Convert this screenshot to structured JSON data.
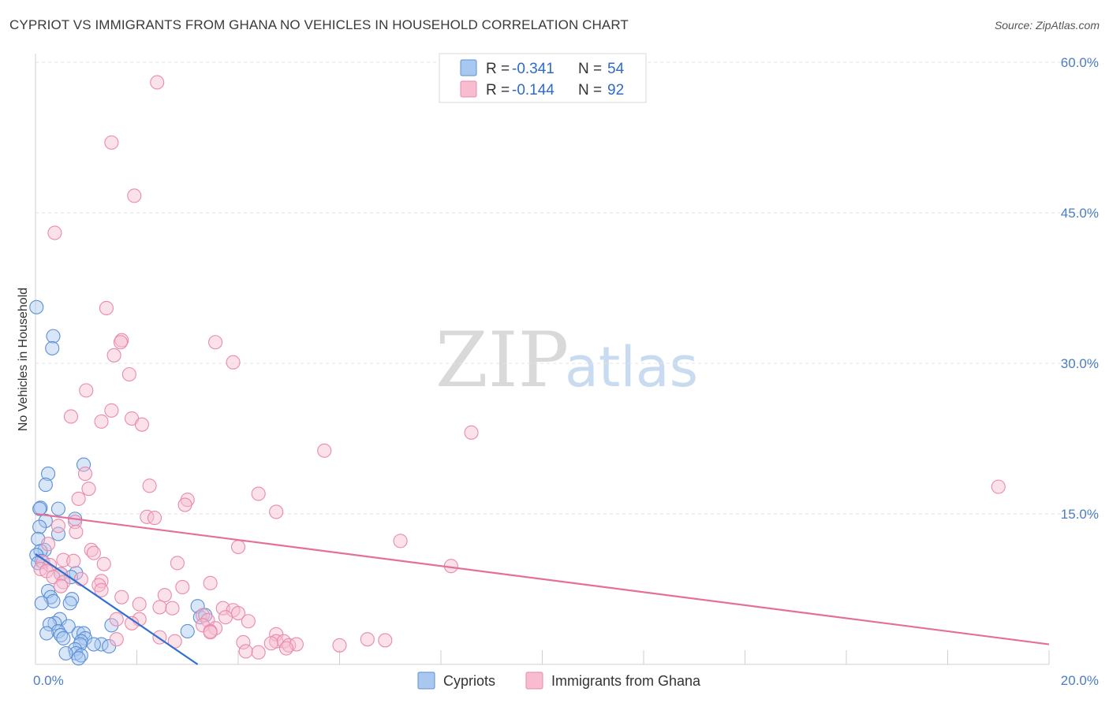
{
  "header": {
    "title": "CYPRIOT VS IMMIGRANTS FROM GHANA NO VEHICLES IN HOUSEHOLD CORRELATION CHART",
    "source": "Source: ZipAtlas.com"
  },
  "watermark": {
    "zip": "ZIP",
    "atlas": "atlas"
  },
  "colors": {
    "blue_fill": "#a9c8f0",
    "blue_stroke": "#5b8fd6",
    "blue_line": "#2f6fd0",
    "pink_fill": "#f7bcd0",
    "pink_stroke": "#e98aab",
    "pink_line": "#e4709a",
    "axis_text": "#4a7cc8",
    "grid": "#e3e3e3"
  },
  "legend": {
    "rows": [
      {
        "r_label": "R =",
        "r_value": "-0.341",
        "n_label": "N =",
        "n_value": "54",
        "swatch": "blue"
      },
      {
        "r_label": "R =",
        "r_value": "-0.144",
        "n_label": "N =",
        "n_value": "92",
        "swatch": "pink"
      }
    ]
  },
  "chart_data": {
    "type": "scatter",
    "title": "CYPRIOT VS IMMIGRANTS FROM GHANA NO VEHICLES IN HOUSEHOLD CORRELATION CHART",
    "xlabel": "",
    "ylabel": "No Vehicles in Household",
    "xlim": [
      0,
      20
    ],
    "ylim": [
      0,
      60
    ],
    "x_tick_labels": [
      "0.0%",
      "20.0%"
    ],
    "y_ticks": [
      15,
      30,
      45,
      60
    ],
    "y_tick_labels": [
      "15.0%",
      "30.0%",
      "45.0%",
      "60.0%"
    ],
    "grid": true,
    "legend_position": "top-center",
    "bottom_legend": [
      "Cypriots",
      "Immigrants from Ghana"
    ],
    "series": [
      {
        "name": "Cypriots",
        "color": "blue",
        "r": -0.341,
        "n": 54,
        "trend": {
          "x0": 0.0,
          "y0": 11.0,
          "x1": 3.2,
          "y1": 0.0
        },
        "points": [
          [
            0.02,
            35.6
          ],
          [
            0.35,
            32.7
          ],
          [
            0.33,
            31.5
          ],
          [
            0.95,
            19.9
          ],
          [
            0.25,
            19.0
          ],
          [
            0.2,
            17.9
          ],
          [
            0.1,
            15.6
          ],
          [
            0.45,
            15.5
          ],
          [
            0.08,
            15.5
          ],
          [
            0.78,
            14.5
          ],
          [
            0.2,
            14.3
          ],
          [
            0.08,
            13.7
          ],
          [
            0.45,
            13.0
          ],
          [
            0.05,
            12.5
          ],
          [
            0.18,
            11.4
          ],
          [
            0.1,
            11.3
          ],
          [
            0.02,
            10.9
          ],
          [
            0.12,
            10.3
          ],
          [
            0.05,
            10.1
          ],
          [
            0.8,
            9.1
          ],
          [
            0.5,
            9.0
          ],
          [
            0.7,
            8.7
          ],
          [
            0.25,
            7.3
          ],
          [
            0.3,
            6.7
          ],
          [
            0.35,
            6.3
          ],
          [
            0.72,
            6.5
          ],
          [
            0.68,
            6.1
          ],
          [
            0.12,
            6.1
          ],
          [
            3.2,
            5.8
          ],
          [
            3.25,
            4.7
          ],
          [
            3.35,
            4.9
          ],
          [
            0.48,
            4.5
          ],
          [
            0.38,
            4.1
          ],
          [
            0.28,
            4.0
          ],
          [
            0.65,
            3.8
          ],
          [
            1.5,
            3.9
          ],
          [
            0.45,
            3.3
          ],
          [
            0.22,
            3.1
          ],
          [
            0.5,
            2.9
          ],
          [
            0.85,
            3.1
          ],
          [
            0.95,
            3.1
          ],
          [
            0.98,
            2.6
          ],
          [
            3.0,
            3.3
          ],
          [
            0.9,
            2.3
          ],
          [
            0.55,
            2.6
          ],
          [
            0.88,
            2.0
          ],
          [
            1.3,
            2.0
          ],
          [
            1.15,
            2.0
          ],
          [
            1.45,
            1.8
          ],
          [
            0.78,
            1.5
          ],
          [
            0.8,
            1.1
          ],
          [
            0.6,
            1.1
          ],
          [
            0.9,
            0.9
          ],
          [
            0.85,
            0.6
          ]
        ]
      },
      {
        "name": "Immigrants from Ghana",
        "color": "pink",
        "r": -0.144,
        "n": 92,
        "trend": {
          "x0": 0.0,
          "y0": 15.0,
          "x1": 20.0,
          "y1": 2.0
        },
        "points": [
          [
            2.4,
            58.0
          ],
          [
            1.5,
            52.0
          ],
          [
            1.95,
            46.7
          ],
          [
            0.38,
            43.0
          ],
          [
            1.4,
            35.5
          ],
          [
            1.7,
            32.3
          ],
          [
            1.68,
            32.1
          ],
          [
            3.55,
            32.1
          ],
          [
            1.55,
            30.8
          ],
          [
            3.9,
            30.1
          ],
          [
            1.85,
            28.9
          ],
          [
            1.0,
            27.3
          ],
          [
            1.5,
            25.3
          ],
          [
            0.7,
            24.7
          ],
          [
            1.9,
            24.5
          ],
          [
            1.3,
            24.2
          ],
          [
            2.1,
            23.9
          ],
          [
            8.6,
            23.1
          ],
          [
            5.7,
            21.3
          ],
          [
            0.98,
            19.0
          ],
          [
            2.25,
            17.8
          ],
          [
            1.05,
            17.5
          ],
          [
            4.4,
            17.0
          ],
          [
            19.0,
            17.7
          ],
          [
            0.85,
            16.5
          ],
          [
            3.0,
            16.4
          ],
          [
            2.95,
            15.9
          ],
          [
            4.75,
            15.2
          ],
          [
            2.2,
            14.7
          ],
          [
            2.35,
            14.6
          ],
          [
            0.78,
            14.2
          ],
          [
            0.45,
            13.8
          ],
          [
            0.8,
            13.2
          ],
          [
            7.2,
            12.3
          ],
          [
            0.25,
            12.0
          ],
          [
            4.0,
            11.7
          ],
          [
            1.1,
            11.4
          ],
          [
            1.15,
            11.1
          ],
          [
            0.55,
            10.4
          ],
          [
            0.75,
            10.3
          ],
          [
            2.8,
            10.1
          ],
          [
            1.35,
            10.0
          ],
          [
            0.15,
            10.2
          ],
          [
            0.28,
            9.9
          ],
          [
            0.1,
            9.5
          ],
          [
            0.22,
            9.3
          ],
          [
            8.2,
            9.8
          ],
          [
            0.5,
            9.0
          ],
          [
            0.35,
            8.7
          ],
          [
            0.55,
            8.2
          ],
          [
            0.9,
            8.5
          ],
          [
            1.3,
            8.3
          ],
          [
            3.45,
            8.1
          ],
          [
            1.25,
            7.9
          ],
          [
            0.5,
            7.8
          ],
          [
            2.9,
            7.7
          ],
          [
            1.3,
            7.4
          ],
          [
            2.55,
            6.9
          ],
          [
            1.7,
            6.7
          ],
          [
            2.05,
            6.0
          ],
          [
            2.45,
            5.7
          ],
          [
            2.7,
            5.6
          ],
          [
            3.7,
            5.6
          ],
          [
            3.9,
            5.4
          ],
          [
            4.0,
            5.1
          ],
          [
            3.3,
            4.9
          ],
          [
            3.75,
            4.7
          ],
          [
            2.05,
            4.5
          ],
          [
            1.6,
            4.5
          ],
          [
            3.4,
            4.4
          ],
          [
            4.2,
            4.3
          ],
          [
            1.9,
            4.1
          ],
          [
            3.3,
            3.9
          ],
          [
            3.55,
            3.6
          ],
          [
            3.45,
            3.3
          ],
          [
            3.45,
            3.2
          ],
          [
            4.75,
            3.0
          ],
          [
            1.6,
            2.5
          ],
          [
            2.45,
            2.7
          ],
          [
            2.75,
            2.3
          ],
          [
            4.1,
            2.2
          ],
          [
            4.75,
            2.3
          ],
          [
            4.9,
            2.3
          ],
          [
            6.55,
            2.5
          ],
          [
            6.9,
            2.4
          ],
          [
            4.65,
            2.1
          ],
          [
            5.0,
            1.9
          ],
          [
            5.15,
            2.0
          ],
          [
            6.0,
            1.9
          ],
          [
            4.15,
            1.3
          ],
          [
            4.4,
            1.2
          ],
          [
            4.95,
            1.6
          ]
        ]
      }
    ]
  }
}
